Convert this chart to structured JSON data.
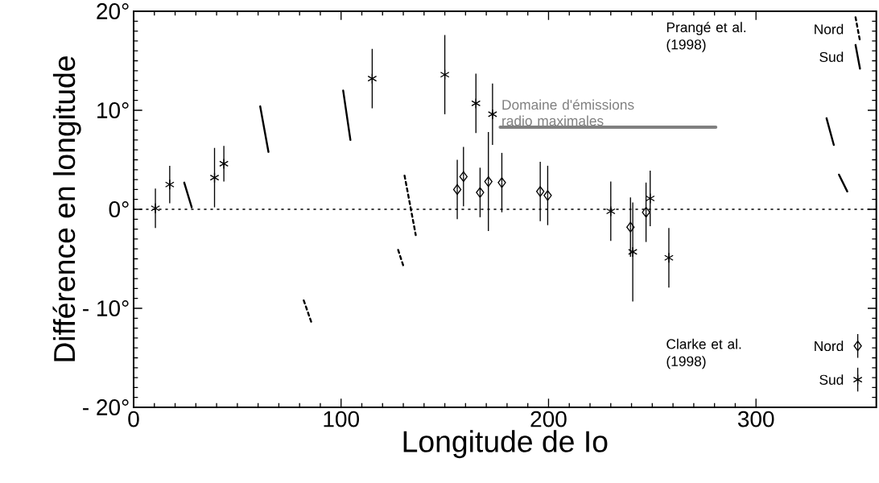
{
  "chart_data": {
    "type": "scatter",
    "xlabel": "Longitude de Io",
    "ylabel": "Différence en longitude",
    "xlim": [
      0,
      358
    ],
    "ylim": [
      -20,
      20
    ],
    "xticks": [
      0,
      100,
      200,
      300
    ],
    "yticks": [
      {
        "value": -20,
        "label": "- 20°"
      },
      {
        "value": -10,
        "label": "- 10°"
      },
      {
        "value": 0,
        "label": "0°"
      },
      {
        "value": 10,
        "label": "10°"
      },
      {
        "value": 20,
        "label": "20°"
      }
    ],
    "ref_lines": [
      {
        "axis": "y",
        "value": 0,
        "line_style": "dotted"
      }
    ],
    "legend": "right",
    "grid": false,
    "annotations": [
      "Prangé et al. (1998)",
      "Clarke et al. (1998)"
    ],
    "series": [
      {
        "name": "Nord",
        "type": "line",
        "color": "#000000",
        "line_style": "dashed",
        "x": [
          82,
          86
        ],
        "values": [
          -9.2,
          -11.6
        ]
      },
      {
        "type": "line",
        "color": "#000000",
        "line_style": "dashed",
        "x": [
          127.5,
          130
        ],
        "values": [
          -4.1,
          -5.7
        ]
      },
      {
        "type": "line",
        "color": "#000000",
        "line_style": "dashed",
        "x": [
          130.6,
          136
        ],
        "values": [
          3.4,
          -2.6
        ]
      },
      {
        "name": "Sud",
        "type": "line",
        "color": "#000000",
        "line_style": "solid",
        "x": [
          24.4,
          28
        ],
        "values": [
          2.7,
          0.2
        ]
      },
      {
        "type": "line",
        "color": "#000000",
        "line_style": "solid",
        "x": [
          61,
          65
        ],
        "values": [
          10.4,
          5.8
        ]
      },
      {
        "type": "line",
        "color": "#000000",
        "line_style": "solid",
        "x": [
          101,
          104.5
        ],
        "values": [
          12.0,
          7.0
        ]
      },
      {
        "type": "line",
        "color": "#000000",
        "line_style": "solid",
        "x": [
          334,
          337.5
        ],
        "values": [
          9.2,
          6.5
        ]
      },
      {
        "type": "line",
        "color": "#000000",
        "line_style": "solid",
        "x": [
          340,
          344
        ],
        "values": [
          3.5,
          1.8
        ]
      },
      {
        "name": "Nord",
        "color": "#000000",
        "marker": "diamond",
        "x": [
          156,
          159,
          167,
          171,
          177.5,
          196,
          199.6,
          239.5,
          247
        ],
        "values": [
          2.0,
          3.3,
          1.7,
          2.8,
          2.7,
          1.8,
          1.4,
          -1.8,
          -0.3
        ],
        "errors": [
          3,
          3,
          2.5,
          5,
          3,
          3,
          3,
          3,
          3
        ]
      },
      {
        "name": "Sud",
        "color": "#000000",
        "marker": "cross",
        "x": [
          10.5,
          17.4,
          39,
          43.5,
          115,
          150,
          165,
          173,
          230,
          240.6,
          249,
          258
        ],
        "values": [
          0.1,
          2.5,
          3.2,
          4.6,
          13.2,
          13.6,
          10.7,
          9.6,
          -0.2,
          -4.3,
          1.1,
          -4.9
        ],
        "errors": [
          2,
          1.9,
          3,
          1.8,
          3,
          4,
          3,
          3.1,
          3,
          5,
          2.8,
          3
        ]
      },
      {
        "name": "Domaine d'émissions radio maximales",
        "type": "line",
        "color": "#808080",
        "line_style": "solid",
        "x": [
          176.7,
          280.6
        ],
        "values": [
          8.3,
          8.3
        ]
      }
    ]
  }
}
